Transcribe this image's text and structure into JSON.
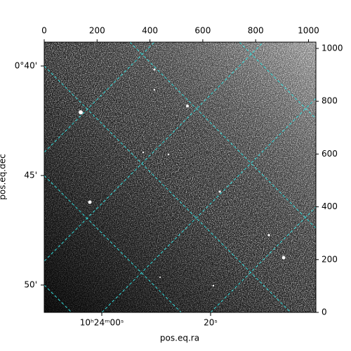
{
  "chart_data": {
    "type": "image",
    "xlabel": "pos.eq.ra",
    "ylabel": "pos.eq.dec",
    "xlim": [
      0,
      1028
    ],
    "ylim": [
      0,
      1024
    ],
    "xticks": [
      0,
      200,
      400,
      600,
      800,
      1000
    ],
    "yticks": [
      0,
      200,
      400,
      600,
      800,
      1000
    ],
    "world_xticks": [
      "10ʰ24ᵐ00ˢ",
      "20ˢ"
    ],
    "world_yticks": [
      "0°40'",
      "45'",
      "50'"
    ],
    "grid": true,
    "grid_color": "#33dddd"
  }
}
